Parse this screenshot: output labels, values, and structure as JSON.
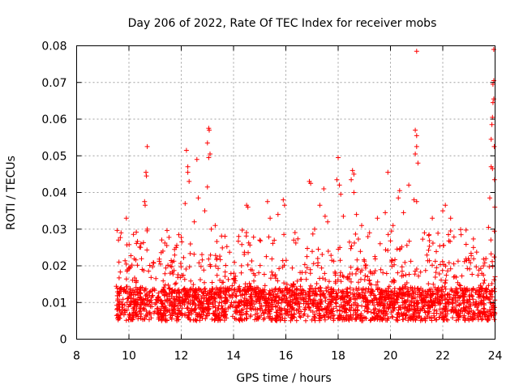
{
  "chart_data": {
    "type": "scatter",
    "title": "Day 206 of 2022, Rate Of TEC Index for receiver mobs",
    "xlabel": "GPS time / hours",
    "ylabel": "ROTI / TECUs",
    "xlim": [
      8,
      24
    ],
    "ylim": [
      0,
      0.08
    ],
    "xticks": [
      "8",
      "10",
      "12",
      "14",
      "16",
      "18",
      "20",
      "22",
      "24"
    ],
    "yticks": [
      "0",
      "0.01",
      "0.02",
      "0.03",
      "0.04",
      "0.05",
      "0.06",
      "0.07",
      "0.08"
    ],
    "grid": true,
    "marker": "+",
    "color": "#ff0000",
    "series": [
      {
        "name": "ROTI",
        "x_start": 9.5,
        "x_end": 24,
        "baseline_range": [
          0.003,
          0.022
        ],
        "outliers": [
          {
            "x": 9.6,
            "y": 0.027
          },
          {
            "x": 9.7,
            "y": 0.029
          },
          {
            "x": 9.9,
            "y": 0.033
          },
          {
            "x": 10.7,
            "y": 0.0525
          },
          {
            "x": 10.65,
            "y": 0.0455
          },
          {
            "x": 10.67,
            "y": 0.0445
          },
          {
            "x": 10.6,
            "y": 0.0375
          },
          {
            "x": 10.62,
            "y": 0.0365
          },
          {
            "x": 10.7,
            "y": 0.03
          },
          {
            "x": 11.3,
            "y": 0.024
          },
          {
            "x": 11.8,
            "y": 0.025
          },
          {
            "x": 12.2,
            "y": 0.0515
          },
          {
            "x": 12.25,
            "y": 0.047
          },
          {
            "x": 12.25,
            "y": 0.0455
          },
          {
            "x": 12.3,
            "y": 0.043
          },
          {
            "x": 12.15,
            "y": 0.037
          },
          {
            "x": 12.5,
            "y": 0.032
          },
          {
            "x": 12.6,
            "y": 0.049
          },
          {
            "x": 12.65,
            "y": 0.0385
          },
          {
            "x": 12.9,
            "y": 0.035
          },
          {
            "x": 13.05,
            "y": 0.0575
          },
          {
            "x": 13.07,
            "y": 0.057
          },
          {
            "x": 13.0,
            "y": 0.0535
          },
          {
            "x": 13.1,
            "y": 0.0505
          },
          {
            "x": 13.05,
            "y": 0.0495
          },
          {
            "x": 13.0,
            "y": 0.0415
          },
          {
            "x": 13.15,
            "y": 0.03
          },
          {
            "x": 13.3,
            "y": 0.031
          },
          {
            "x": 14.5,
            "y": 0.0365
          },
          {
            "x": 14.55,
            "y": 0.036
          },
          {
            "x": 14.2,
            "y": 0.028
          },
          {
            "x": 15.0,
            "y": 0.027
          },
          {
            "x": 15.3,
            "y": 0.0375
          },
          {
            "x": 15.4,
            "y": 0.033
          },
          {
            "x": 15.7,
            "y": 0.034
          },
          {
            "x": 15.9,
            "y": 0.038
          },
          {
            "x": 15.95,
            "y": 0.0365
          },
          {
            "x": 16.3,
            "y": 0.027
          },
          {
            "x": 16.9,
            "y": 0.043
          },
          {
            "x": 16.95,
            "y": 0.0425
          },
          {
            "x": 17.1,
            "y": 0.03
          },
          {
            "x": 17.3,
            "y": 0.0365
          },
          {
            "x": 17.45,
            "y": 0.041
          },
          {
            "x": 17.5,
            "y": 0.0335
          },
          {
            "x": 17.6,
            "y": 0.032
          },
          {
            "x": 18.0,
            "y": 0.0495
          },
          {
            "x": 17.95,
            "y": 0.0435
          },
          {
            "x": 18.05,
            "y": 0.042
          },
          {
            "x": 18.1,
            "y": 0.0395
          },
          {
            "x": 18.2,
            "y": 0.0335
          },
          {
            "x": 18.55,
            "y": 0.046
          },
          {
            "x": 18.6,
            "y": 0.045
          },
          {
            "x": 18.5,
            "y": 0.0435
          },
          {
            "x": 18.6,
            "y": 0.04
          },
          {
            "x": 18.7,
            "y": 0.034
          },
          {
            "x": 18.9,
            "y": 0.031
          },
          {
            "x": 19.2,
            "y": 0.029
          },
          {
            "x": 19.5,
            "y": 0.033
          },
          {
            "x": 19.8,
            "y": 0.0345
          },
          {
            "x": 19.9,
            "y": 0.0455
          },
          {
            "x": 20.1,
            "y": 0.031
          },
          {
            "x": 20.3,
            "y": 0.0385
          },
          {
            "x": 20.35,
            "y": 0.0405
          },
          {
            "x": 20.5,
            "y": 0.0345
          },
          {
            "x": 20.7,
            "y": 0.042
          },
          {
            "x": 20.9,
            "y": 0.038
          },
          {
            "x": 21.0,
            "y": 0.0785
          },
          {
            "x": 20.95,
            "y": 0.057
          },
          {
            "x": 21.0,
            "y": 0.0555
          },
          {
            "x": 21.0,
            "y": 0.0525
          },
          {
            "x": 20.95,
            "y": 0.0505
          },
          {
            "x": 21.05,
            "y": 0.048
          },
          {
            "x": 21.0,
            "y": 0.0375
          },
          {
            "x": 21.3,
            "y": 0.029
          },
          {
            "x": 21.6,
            "y": 0.033
          },
          {
            "x": 22.0,
            "y": 0.035
          },
          {
            "x": 22.1,
            "y": 0.0365
          },
          {
            "x": 22.3,
            "y": 0.033
          },
          {
            "x": 23.75,
            "y": 0.0305
          },
          {
            "x": 23.8,
            "y": 0.0385
          },
          {
            "x": 23.85,
            "y": 0.047
          },
          {
            "x": 23.9,
            "y": 0.0465
          },
          {
            "x": 23.85,
            "y": 0.0545
          },
          {
            "x": 23.88,
            "y": 0.0585
          },
          {
            "x": 23.9,
            "y": 0.0605
          },
          {
            "x": 23.92,
            "y": 0.0645
          },
          {
            "x": 23.95,
            "y": 0.0655
          },
          {
            "x": 23.92,
            "y": 0.0695
          },
          {
            "x": 23.95,
            "y": 0.0705
          },
          {
            "x": 23.95,
            "y": 0.079
          },
          {
            "x": 23.97,
            "y": 0.0525
          },
          {
            "x": 23.98,
            "y": 0.0435
          },
          {
            "x": 23.99,
            "y": 0.036
          }
        ]
      }
    ]
  }
}
